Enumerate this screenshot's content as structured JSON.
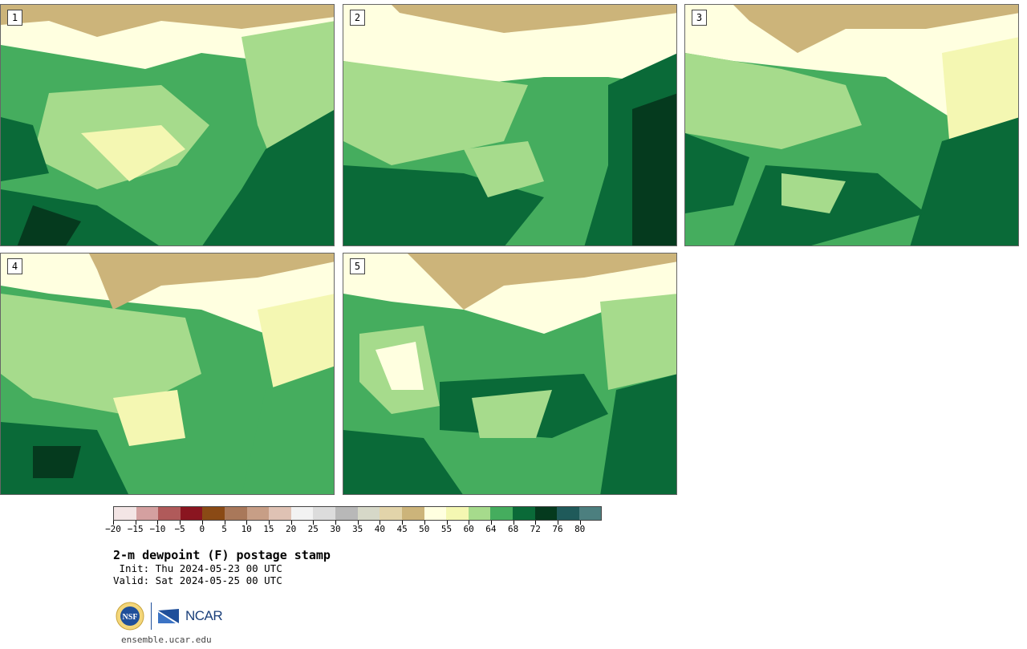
{
  "panels": [
    {
      "label": "1"
    },
    {
      "label": "2"
    },
    {
      "label": "3"
    },
    {
      "label": "4"
    },
    {
      "label": "5"
    }
  ],
  "colorbar": {
    "colors": [
      "#f3e5e5",
      "#d4a0a0",
      "#b05a5a",
      "#8a1520",
      "#8a4a15",
      "#a9785a",
      "#c79e86",
      "#dfc2b4",
      "#f2f2f2",
      "#dcdcdc",
      "#b8b8b8",
      "#d6d8c8",
      "#e2d4aa",
      "#ccb47a",
      "#ffffe0",
      "#f4f7b2",
      "#a6db8c",
      "#45ad5e",
      "#0a6a38",
      "#053a1e",
      "#1f5a5a",
      "#4c7f7f"
    ],
    "ticks": [
      "-20",
      "-15",
      "-10",
      "-5",
      "0",
      "5",
      "10",
      "15",
      "20",
      "25",
      "30",
      "35",
      "40",
      "45",
      "50",
      "55",
      "60",
      "64",
      "68",
      "72",
      "76",
      "80"
    ]
  },
  "title": "2-m dewpoint (F) postage stamp",
  "init": " Init: Thu 2024-05-23 00 UTC",
  "valid": "Valid: Sat 2024-05-25 00 UTC",
  "logos": {
    "nsf": "NSF",
    "ncar": "NCAR"
  },
  "footer_url": "ensemble.ucar.edu"
}
